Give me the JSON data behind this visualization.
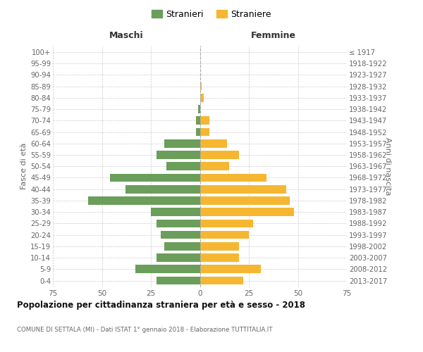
{
  "age_groups": [
    "0-4",
    "5-9",
    "10-14",
    "15-19",
    "20-24",
    "25-29",
    "30-34",
    "35-39",
    "40-44",
    "45-49",
    "50-54",
    "55-59",
    "60-64",
    "65-69",
    "70-74",
    "75-79",
    "80-84",
    "85-89",
    "90-94",
    "95-99",
    "100+"
  ],
  "birth_years": [
    "2013-2017",
    "2008-2012",
    "2003-2007",
    "1998-2002",
    "1993-1997",
    "1988-1992",
    "1983-1987",
    "1978-1982",
    "1973-1977",
    "1968-1972",
    "1963-1967",
    "1958-1962",
    "1953-1957",
    "1948-1952",
    "1943-1947",
    "1938-1942",
    "1933-1937",
    "1928-1932",
    "1923-1927",
    "1918-1922",
    "≤ 1917"
  ],
  "maschi": [
    22,
    33,
    22,
    18,
    20,
    22,
    25,
    57,
    38,
    46,
    17,
    22,
    18,
    2,
    2,
    1,
    0,
    0,
    0,
    0,
    0
  ],
  "femmine": [
    22,
    31,
    20,
    20,
    25,
    27,
    48,
    46,
    44,
    34,
    15,
    20,
    14,
    5,
    5,
    0,
    2,
    1,
    0,
    0,
    0
  ],
  "color_maschi": "#6a9e5a",
  "color_femmine": "#f5b731",
  "title": "Popolazione per cittadinanza straniera per età e sesso - 2018",
  "subtitle": "COMUNE DI SETTALA (MI) - Dati ISTAT 1° gennaio 2018 - Elaborazione TUTTITALIA.IT",
  "ylabel_left": "Fasce di età",
  "ylabel_right": "Anni di nascita",
  "xlabel_left": "Maschi",
  "xlabel_right": "Femmine",
  "legend_maschi": "Stranieri",
  "legend_femmine": "Straniere",
  "xlim": 75,
  "background_color": "#ffffff",
  "grid_color": "#cccccc"
}
